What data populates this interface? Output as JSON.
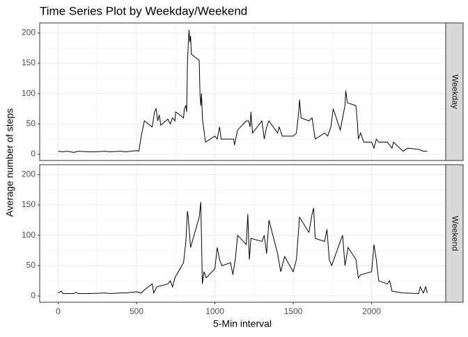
{
  "chart_data": {
    "type": "line",
    "title": "Time Series Plot by Weekday/Weekend",
    "x_label": "5-Min interval",
    "y_label": "Average number of steps",
    "xlim": [
      -117.75,
      2472.75
    ],
    "ylim": [
      -10.3,
      216.5
    ],
    "xticks": [
      0,
      500,
      1000,
      1500,
      2000
    ],
    "yticks": [
      0,
      50,
      100,
      150,
      200
    ],
    "grid": true,
    "color": "#000000",
    "panels": [
      {
        "strip": "Weekday",
        "x": [
          0,
          30,
          55,
          100,
          130,
          200,
          230,
          300,
          330,
          400,
          430,
          500,
          515,
          530,
          550,
          600,
          615,
          625,
          635,
          645,
          655,
          700,
          715,
          730,
          745,
          750,
          800,
          805,
          815,
          820,
          825,
          830,
          835,
          840,
          845,
          850,
          900,
          905,
          910,
          915,
          920,
          930,
          940,
          1000,
          1015,
          1030,
          1040,
          1100,
          1120,
          1125,
          1145,
          1200,
          1215,
          1225,
          1230,
          1240,
          1300,
          1315,
          1330,
          1345,
          1400,
          1410,
          1430,
          1500,
          1520,
          1535,
          1540,
          1550,
          1600,
          1620,
          1640,
          1700,
          1720,
          1740,
          1755,
          1800,
          1815,
          1830,
          1835,
          1845,
          1900,
          1910,
          1915,
          1930,
          1950,
          2000,
          2015,
          2030,
          2045,
          2100,
          2130,
          2140,
          2200,
          2230,
          2300,
          2330,
          2355
        ],
        "values": [
          5,
          4,
          5,
          3,
          5,
          4,
          4,
          5,
          4,
          5,
          4,
          6,
          5,
          30,
          55,
          45,
          70,
          75,
          55,
          65,
          48,
          58,
          50,
          60,
          55,
          70,
          60,
          75,
          80,
          70,
          150,
          180,
          205,
          185,
          195,
          165,
          155,
          100,
          80,
          100,
          60,
          40,
          20,
          30,
          25,
          45,
          25,
          25,
          25,
          15,
          40,
          55,
          55,
          45,
          70,
          35,
          55,
          25,
          45,
          55,
          35,
          45,
          30,
          30,
          35,
          70,
          90,
          60,
          55,
          60,
          25,
          35,
          30,
          45,
          75,
          40,
          60,
          80,
          105,
          85,
          80,
          50,
          25,
          35,
          20,
          20,
          10,
          25,
          20,
          20,
          10,
          20,
          5,
          10,
          8,
          5,
          5
        ]
      },
      {
        "strip": "Weekend",
        "x": [
          0,
          20,
          30,
          100,
          110,
          130,
          200,
          300,
          330,
          400,
          430,
          500,
          530,
          550,
          600,
          610,
          630,
          700,
          715,
          730,
          745,
          800,
          815,
          825,
          830,
          845,
          900,
          910,
          915,
          920,
          930,
          945,
          1000,
          1015,
          1030,
          1045,
          1100,
          1115,
          1130,
          1145,
          1200,
          1210,
          1220,
          1230,
          1300,
          1315,
          1330,
          1345,
          1400,
          1420,
          1445,
          1500,
          1520,
          1540,
          1600,
          1620,
          1630,
          1640,
          1700,
          1715,
          1730,
          1745,
          1800,
          1815,
          1830,
          1850,
          1900,
          1915,
          1930,
          2000,
          2015,
          2030,
          2045,
          2100,
          2115,
          2130,
          2200,
          2300,
          2310,
          2330,
          2345,
          2355
        ],
        "values": [
          5,
          8,
          4,
          4,
          6,
          4,
          4,
          5,
          4,
          5,
          5,
          7,
          5,
          10,
          20,
          5,
          15,
          20,
          25,
          15,
          30,
          55,
          90,
          140,
          130,
          80,
          130,
          155,
          90,
          20,
          40,
          30,
          45,
          80,
          60,
          50,
          55,
          35,
          60,
          100,
          85,
          135,
          60,
          95,
          90,
          100,
          70,
          125,
          70,
          40,
          65,
          40,
          60,
          130,
          105,
          135,
          145,
          95,
          90,
          110,
          60,
          50,
          90,
          100,
          50,
          80,
          60,
          30,
          35,
          40,
          85,
          60,
          25,
          20,
          25,
          8,
          5,
          4,
          15,
          5,
          15,
          5
        ]
      }
    ]
  }
}
